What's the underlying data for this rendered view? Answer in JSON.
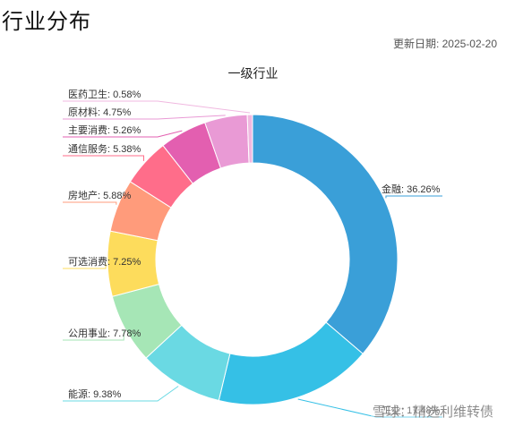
{
  "header": {
    "title": "行业分布",
    "update_date": "更新日期: 2025-02-20"
  },
  "watermark": "雪球：精选利维转债",
  "chart_data": {
    "type": "pie",
    "variant": "donut",
    "title": "一级行业",
    "series": [
      {
        "name": "金融",
        "value": 36.26,
        "label": "金融: 36.26%",
        "color": "#3a9fd8"
      },
      {
        "name": "工业",
        "value": 17.48,
        "label": "工业: 17.48%",
        "color": "#35c0e6"
      },
      {
        "name": "能源",
        "value": 9.38,
        "label": "能源: 9.38%",
        "color": "#6ad9e3"
      },
      {
        "name": "公用事业",
        "value": 7.78,
        "label": "公用事业: 7.78%",
        "color": "#a6e6b6"
      },
      {
        "name": "可选消费",
        "value": 7.25,
        "label": "可选消费: 7.25%",
        "color": "#fddc5c"
      },
      {
        "name": "房地产",
        "value": 5.88,
        "label": "房地产: 5.88%",
        "color": "#ff9b7b"
      },
      {
        "name": "通信服务",
        "value": 5.38,
        "label": "通信服务: 5.38%",
        "color": "#ff6d8a"
      },
      {
        "name": "主要消费",
        "value": 5.26,
        "label": "主要消费: 5.26%",
        "color": "#e35fb0"
      },
      {
        "name": "原材料",
        "value": 4.75,
        "label": "原材料: 4.75%",
        "color": "#e99ad5"
      },
      {
        "name": "医药卫生",
        "value": 0.58,
        "label": "医药卫生: 0.58%",
        "color": "#f0b8e0"
      }
    ]
  }
}
